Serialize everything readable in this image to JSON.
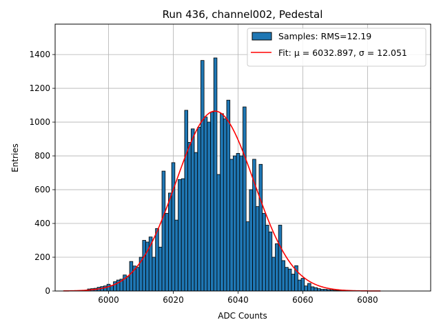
{
  "chart_data": {
    "type": "bar",
    "title": "Run 436, channel002, Pedestal",
    "xlabel": "ADC Counts",
    "ylabel": "Entries",
    "xlim": [
      5983.5,
      6099.5
    ],
    "ylim": [
      0,
      1580
    ],
    "x_ticks": [
      6000,
      6020,
      6040,
      6060,
      6080
    ],
    "x_tick_labels": [
      "6000",
      "6020",
      "6040",
      "6060",
      "6080"
    ],
    "y_ticks": [
      0,
      200,
      400,
      600,
      800,
      1000,
      1200,
      1400
    ],
    "y_tick_labels": [
      "0",
      "200",
      "400",
      "600",
      "800",
      "1000",
      "1200",
      "1400"
    ],
    "grid": true,
    "legend_position": "top-right",
    "series": [
      {
        "name": "Samples: RMS=12.19",
        "kind": "histogram",
        "bin_width": 1,
        "x": [
          5994,
          5995,
          5996,
          5997,
          5998,
          5999,
          6000,
          6001,
          6002,
          6003,
          6004,
          6005,
          6006,
          6007,
          6008,
          6009,
          6010,
          6011,
          6012,
          6013,
          6014,
          6015,
          6016,
          6017,
          6018,
          6019,
          6020,
          6021,
          6022,
          6023,
          6024,
          6025,
          6026,
          6027,
          6028,
          6029,
          6030,
          6031,
          6032,
          6033,
          6034,
          6035,
          6036,
          6037,
          6038,
          6039,
          6040,
          6041,
          6042,
          6043,
          6044,
          6045,
          6046,
          6047,
          6048,
          6049,
          6050,
          6051,
          6052,
          6053,
          6054,
          6055,
          6056,
          6057,
          6058,
          6059,
          6060,
          6061,
          6062,
          6063,
          6064,
          6065,
          6066,
          6067,
          6068,
          6069,
          6070,
          6071,
          6072,
          6073
        ],
        "values": [
          12,
          14,
          16,
          22,
          26,
          30,
          40,
          33,
          55,
          65,
          70,
          95,
          85,
          175,
          148,
          140,
          200,
          300,
          290,
          320,
          200,
          370,
          260,
          710,
          460,
          580,
          760,
          420,
          660,
          665,
          1070,
          880,
          960,
          820,
          970,
          1365,
          1030,
          1000,
          1060,
          1380,
          690,
          1050,
          1020,
          1130,
          780,
          800,
          815,
          800,
          1090,
          410,
          600,
          780,
          500,
          750,
          460,
          390,
          350,
          200,
          280,
          390,
          180,
          140,
          130,
          100,
          150,
          65,
          75,
          30,
          45,
          25,
          20,
          14,
          10,
          10,
          8,
          6,
          4,
          3,
          2,
          1
        ]
      },
      {
        "name": "Fit: μ = 6032.897, σ = 12.051",
        "kind": "gaussian-fit",
        "mu": 6032.897,
        "sigma": 12.051,
        "amplitude": 1065,
        "x_range": [
          5986,
          6084
        ],
        "color": "#e41a1c"
      }
    ],
    "colors": {
      "bar_fill": "#1f77b4",
      "bar_edge": "#000000",
      "fit_line": "#ff0000",
      "grid": "#b0b0b0"
    }
  }
}
